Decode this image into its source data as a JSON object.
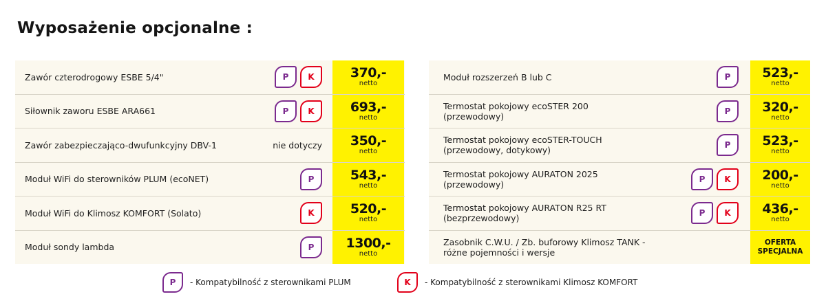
{
  "title": "Wyposażenie opcjonalne :",
  "colors": {
    "price_bg": "#fff200",
    "plum": "#7b2a8e",
    "klimosz": "#e2001a"
  },
  "left_items": [
    {
      "name": "Zawór czterodrogowy ESBE 5/4\"",
      "badges": [
        "P",
        "K"
      ],
      "price": "370,-",
      "unit": "netto"
    },
    {
      "name": "Siłownik zaworu ESBE ARA661",
      "badges": [
        "P",
        "K"
      ],
      "price": "693,-",
      "unit": "netto"
    },
    {
      "name": "Zawór zabezpieczająco-dwufunkcyjny DBV-1",
      "note": "nie dotyczy",
      "badges": [],
      "price": "350,-",
      "unit": "netto"
    },
    {
      "name": "Moduł WiFi do sterowników PLUM (ecoNET)",
      "badges": [
        "P"
      ],
      "price": "543,-",
      "unit": "netto"
    },
    {
      "name": "Moduł WiFi do Klimosz KOMFORT (Solato)",
      "badges": [
        "K"
      ],
      "price": "520,-",
      "unit": "netto"
    },
    {
      "name": "Moduł sondy lambda",
      "badges": [
        "P"
      ],
      "price": "1300,-",
      "unit": "netto"
    }
  ],
  "right_items": [
    {
      "name": "Moduł rozszerzeń B lub C",
      "badges": [
        "P"
      ],
      "price": "523,-",
      "unit": "netto"
    },
    {
      "name": "Termostat pokojowy ecoSTER 200\n(przewodowy)",
      "badges": [
        "P"
      ],
      "price": "320,-",
      "unit": "netto"
    },
    {
      "name": "Termostat pokojowy ecoSTER-TOUCH\n(przewodowy, dotykowy)",
      "badges": [
        "P"
      ],
      "price": "523,-",
      "unit": "netto"
    },
    {
      "name": "Termostat pokojowy AURATON 2025\n(przewodowy)",
      "badges": [
        "P",
        "K"
      ],
      "price": "200,-",
      "unit": "netto"
    },
    {
      "name": "Termostat pokojowy AURATON R25 RT\n(bezprzewodowy)",
      "badges": [
        "P",
        "K"
      ],
      "price": "436,-",
      "unit": "netto"
    },
    {
      "name": "Zasobnik C.W.U. / Zb. buforowy Klimosz TANK -\nróżne pojemności i wersje",
      "badges": [],
      "offer": "OFERTA\nSPECJALNA"
    }
  ],
  "legend": {
    "plum_letter": "P",
    "plum_text": "- Kompatybilność z sterownikami PLUM",
    "klimosz_letter": "K",
    "klimosz_text": "- Kompatybilność z sterownikami Klimosz KOMFORT"
  }
}
